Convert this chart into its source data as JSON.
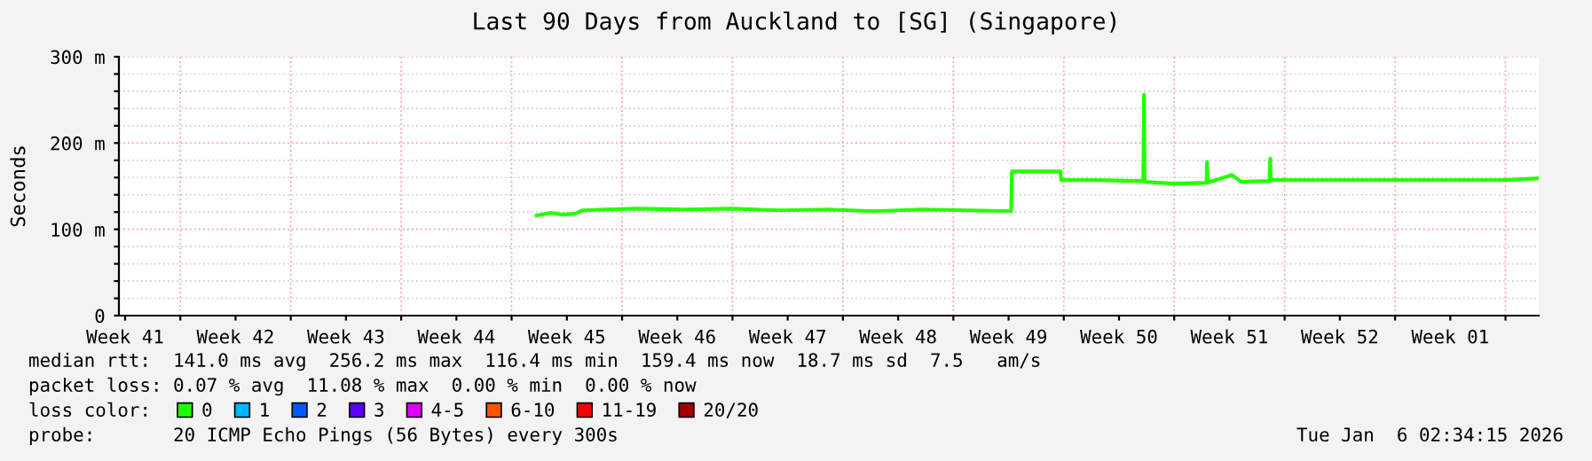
{
  "chart_data": {
    "type": "line",
    "title": "Last 90 Days from Auckland to [SG] (Singapore)",
    "ylabel": "Seconds",
    "xlim": [
      "2025-10-08T02:34",
      "2026-01-06T02:34"
    ],
    "ylim": [
      0,
      300
    ],
    "yticks": [
      0,
      {
        "value": 20,
        "label": null
      },
      {
        "value": 40,
        "label": null
      },
      {
        "value": 60,
        "label": null
      },
      {
        "value": 80,
        "label": null
      },
      {
        "value": 100,
        "label": "100 m"
      },
      {
        "value": 120,
        "label": null
      },
      {
        "value": 140,
        "label": null
      },
      {
        "value": 160,
        "label": null
      },
      {
        "value": 180,
        "label": null
      },
      {
        "value": 200,
        "label": "200 m"
      },
      {
        "value": 220,
        "label": null
      },
      {
        "value": 240,
        "label": null
      },
      {
        "value": 260,
        "label": null
      },
      {
        "value": 280,
        "label": null
      },
      {
        "value": 300,
        "label": "300 m"
      }
    ],
    "xticks": [
      {
        "value": "2025-10-08T12:00",
        "label": "Week 41"
      },
      {
        "value": "2025-10-12",
        "label": null
      },
      {
        "value": "2025-10-15T12:00",
        "label": "Week 42"
      },
      {
        "value": "2025-10-19",
        "label": null
      },
      {
        "value": "2025-10-22T12:00",
        "label": "Week 43"
      },
      {
        "value": "2025-10-26",
        "label": null
      },
      {
        "value": "2025-10-29T12:00",
        "label": "Week 44"
      },
      {
        "value": "2025-11-02",
        "label": null
      },
      {
        "value": "2025-11-05T12:00",
        "label": "Week 45"
      },
      {
        "value": "2025-11-09",
        "label": null
      },
      {
        "value": "2025-11-12T12:00",
        "label": "Week 46"
      },
      {
        "value": "2025-11-16",
        "label": null
      },
      {
        "value": "2025-11-19T12:00",
        "label": "Week 47"
      },
      {
        "value": "2025-11-23",
        "label": null
      },
      {
        "value": "2025-11-26T12:00",
        "label": "Week 48"
      },
      {
        "value": "2025-11-30",
        "label": null
      },
      {
        "value": "2025-12-03T12:00",
        "label": "Week 49"
      },
      {
        "value": "2025-12-07",
        "label": null
      },
      {
        "value": "2025-12-10T12:00",
        "label": "Week 50"
      },
      {
        "value": "2025-12-14",
        "label": null
      },
      {
        "value": "2025-12-17T12:00",
        "label": "Week 51"
      },
      {
        "value": "2025-12-21",
        "label": null
      },
      {
        "value": "2025-12-24T12:00",
        "label": "Week 52"
      },
      {
        "value": "2025-12-28",
        "label": null
      },
      {
        "value": "2025-12-31T12:00",
        "label": "Week 01"
      },
      {
        "value": "2026-01-04",
        "label": null
      }
    ],
    "grid": true,
    "legend": "bottom",
    "legend_title": "loss color:",
    "marker": "none",
    "line_style": "solid",
    "series": [
      {
        "name": "0",
        "color": "#26ff00",
        "x": [
          "2025-11-03T14:00",
          "2025-11-04T12:00",
          "2025-11-05T06:00",
          "2025-11-06T00:00",
          "2025-11-06T12:00",
          "2025-11-08T00:00",
          "2025-11-10T00:00",
          "2025-11-13T00:00",
          "2025-11-16T00:00",
          "2025-11-19T00:00",
          "2025-11-22T00:00",
          "2025-11-25T00:00",
          "2025-11-28T00:00",
          "2025-12-01T00:00",
          "2025-12-03T16:00",
          "2025-12-03T17:00",
          "2025-12-06T19:00",
          "2025-12-06T20:00",
          "2025-12-09T00:00",
          "2025-12-12T01:00",
          "2025-12-12T02:00",
          "2025-12-12T03:00",
          "2025-12-14T00:00",
          "2025-12-16T01:00",
          "2025-12-16T02:00",
          "2025-12-16T03:00",
          "2025-12-17T16:00",
          "2025-12-18T06:00",
          "2025-12-20T01:00",
          "2025-12-20T02:00",
          "2025-12-20T03:00",
          "2025-12-25T00:00",
          "2025-12-30T00:00",
          "2026-01-04T00:00",
          "2026-01-06T00:00"
        ],
        "values": [
          116,
          119,
          117,
          118,
          122,
          123,
          124,
          123,
          124,
          122,
          123,
          121,
          123,
          122,
          121,
          167,
          167,
          157,
          157,
          156,
          256,
          155,
          153,
          154,
          178,
          154,
          163,
          155,
          156,
          182,
          157,
          157,
          157,
          157,
          159
        ]
      },
      {
        "name": "1",
        "color": "#00b8ff"
      },
      {
        "name": "2",
        "color": "#0059ff"
      },
      {
        "name": "3",
        "color": "#5e00ff"
      },
      {
        "name": "4-5",
        "color": "#dd00ff"
      },
      {
        "name": "6-10",
        "color": "#ff5500"
      },
      {
        "name": "11-19",
        "color": "#ff0000"
      },
      {
        "name": "20/20",
        "color": "#a10000"
      }
    ],
    "annotations": [
      "median rtt:  141.0 ms avg  256.2 ms max  116.4 ms min  159.4 ms now  18.7 ms sd  7.5   am/s",
      "packet loss: 0.07 % avg  11.08 % max  0.00 % min  0.00 % now",
      "probe:       20 ICMP Echo Pings (56 Bytes) every 300s",
      "Tue Jan  6 02:34:15 2026"
    ]
  }
}
